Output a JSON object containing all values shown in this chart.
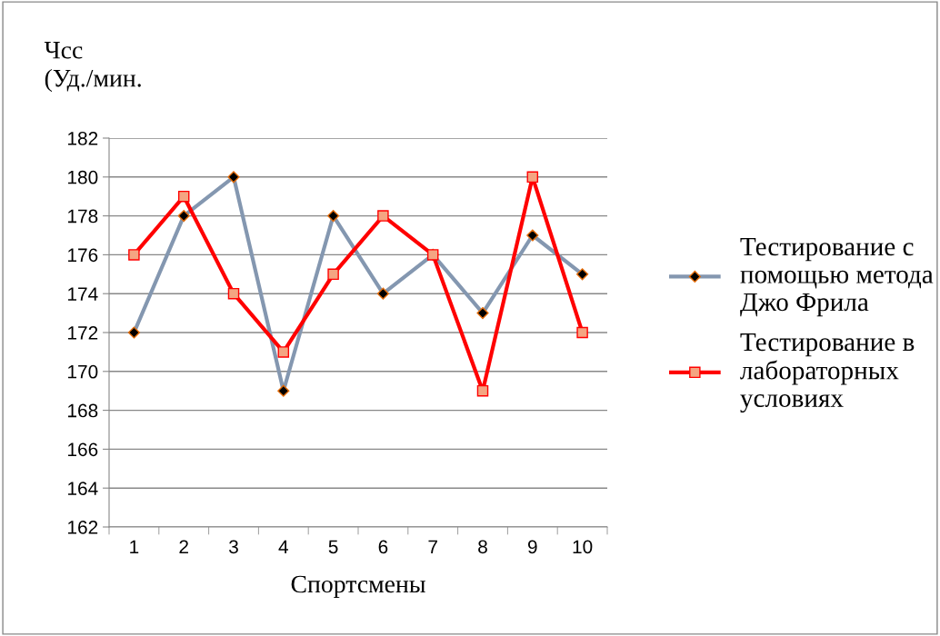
{
  "chart_data": {
    "type": "line",
    "ylabel": "Чсс\n(Уд./мин.",
    "xlabel": "Спортсмены",
    "categories": [
      "1",
      "2",
      "3",
      "4",
      "5",
      "6",
      "7",
      "8",
      "9",
      "10"
    ],
    "series": [
      {
        "name": "Тестирование с\nпомощью метода\nДжо Фрила",
        "color": "#8497b0",
        "marker": "diamond",
        "values": [
          172,
          178,
          180,
          169,
          178,
          174,
          176,
          173,
          177,
          175
        ]
      },
      {
        "name": "Тестирование в\nлабораторных\nусловиях",
        "color": "#ff0000",
        "marker": "square",
        "values": [
          176,
          179,
          174,
          171,
          175,
          178,
          176,
          169,
          180,
          172
        ]
      }
    ],
    "ylim": [
      162,
      182
    ],
    "yticks": [
      162,
      164,
      166,
      168,
      170,
      172,
      174,
      176,
      178,
      180,
      182
    ],
    "grid": "y",
    "legend": "right",
    "line_style": "solid"
  }
}
